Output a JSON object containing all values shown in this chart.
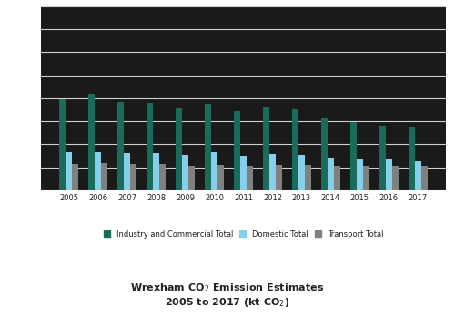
{
  "years": [
    "2005",
    "2006",
    "2007",
    "2008",
    "2009",
    "2010",
    "2011",
    "2012",
    "2013",
    "2014",
    "2015",
    "2016",
    "2017"
  ],
  "industry_commercial": [
    790,
    840,
    770,
    760,
    710,
    750,
    690,
    720,
    700,
    635,
    595,
    565,
    555
  ],
  "domestic": [
    330,
    335,
    325,
    325,
    305,
    330,
    300,
    315,
    305,
    285,
    265,
    265,
    255
  ],
  "transport": [
    230,
    235,
    230,
    225,
    210,
    220,
    215,
    220,
    220,
    215,
    210,
    215,
    210
  ],
  "industry_color": "#1a6b5a",
  "domestic_color": "#87ceeb",
  "transport_color": "#808080",
  "plot_bg_color": "#1a1a1a",
  "fig_bg_color": "#ffffff",
  "grid_color": "#d0d0d0",
  "tick_color": "#ffffff",
  "outer_tick_color": "#333333",
  "ylim": [
    0,
    1600
  ],
  "yticks": [
    0,
    200,
    400,
    600,
    800,
    1000,
    1200,
    1400,
    1600
  ],
  "legend_labels": [
    "Industry and Commercial Total",
    "Domestic Total",
    "Transport Total"
  ],
  "bar_width": 0.22
}
